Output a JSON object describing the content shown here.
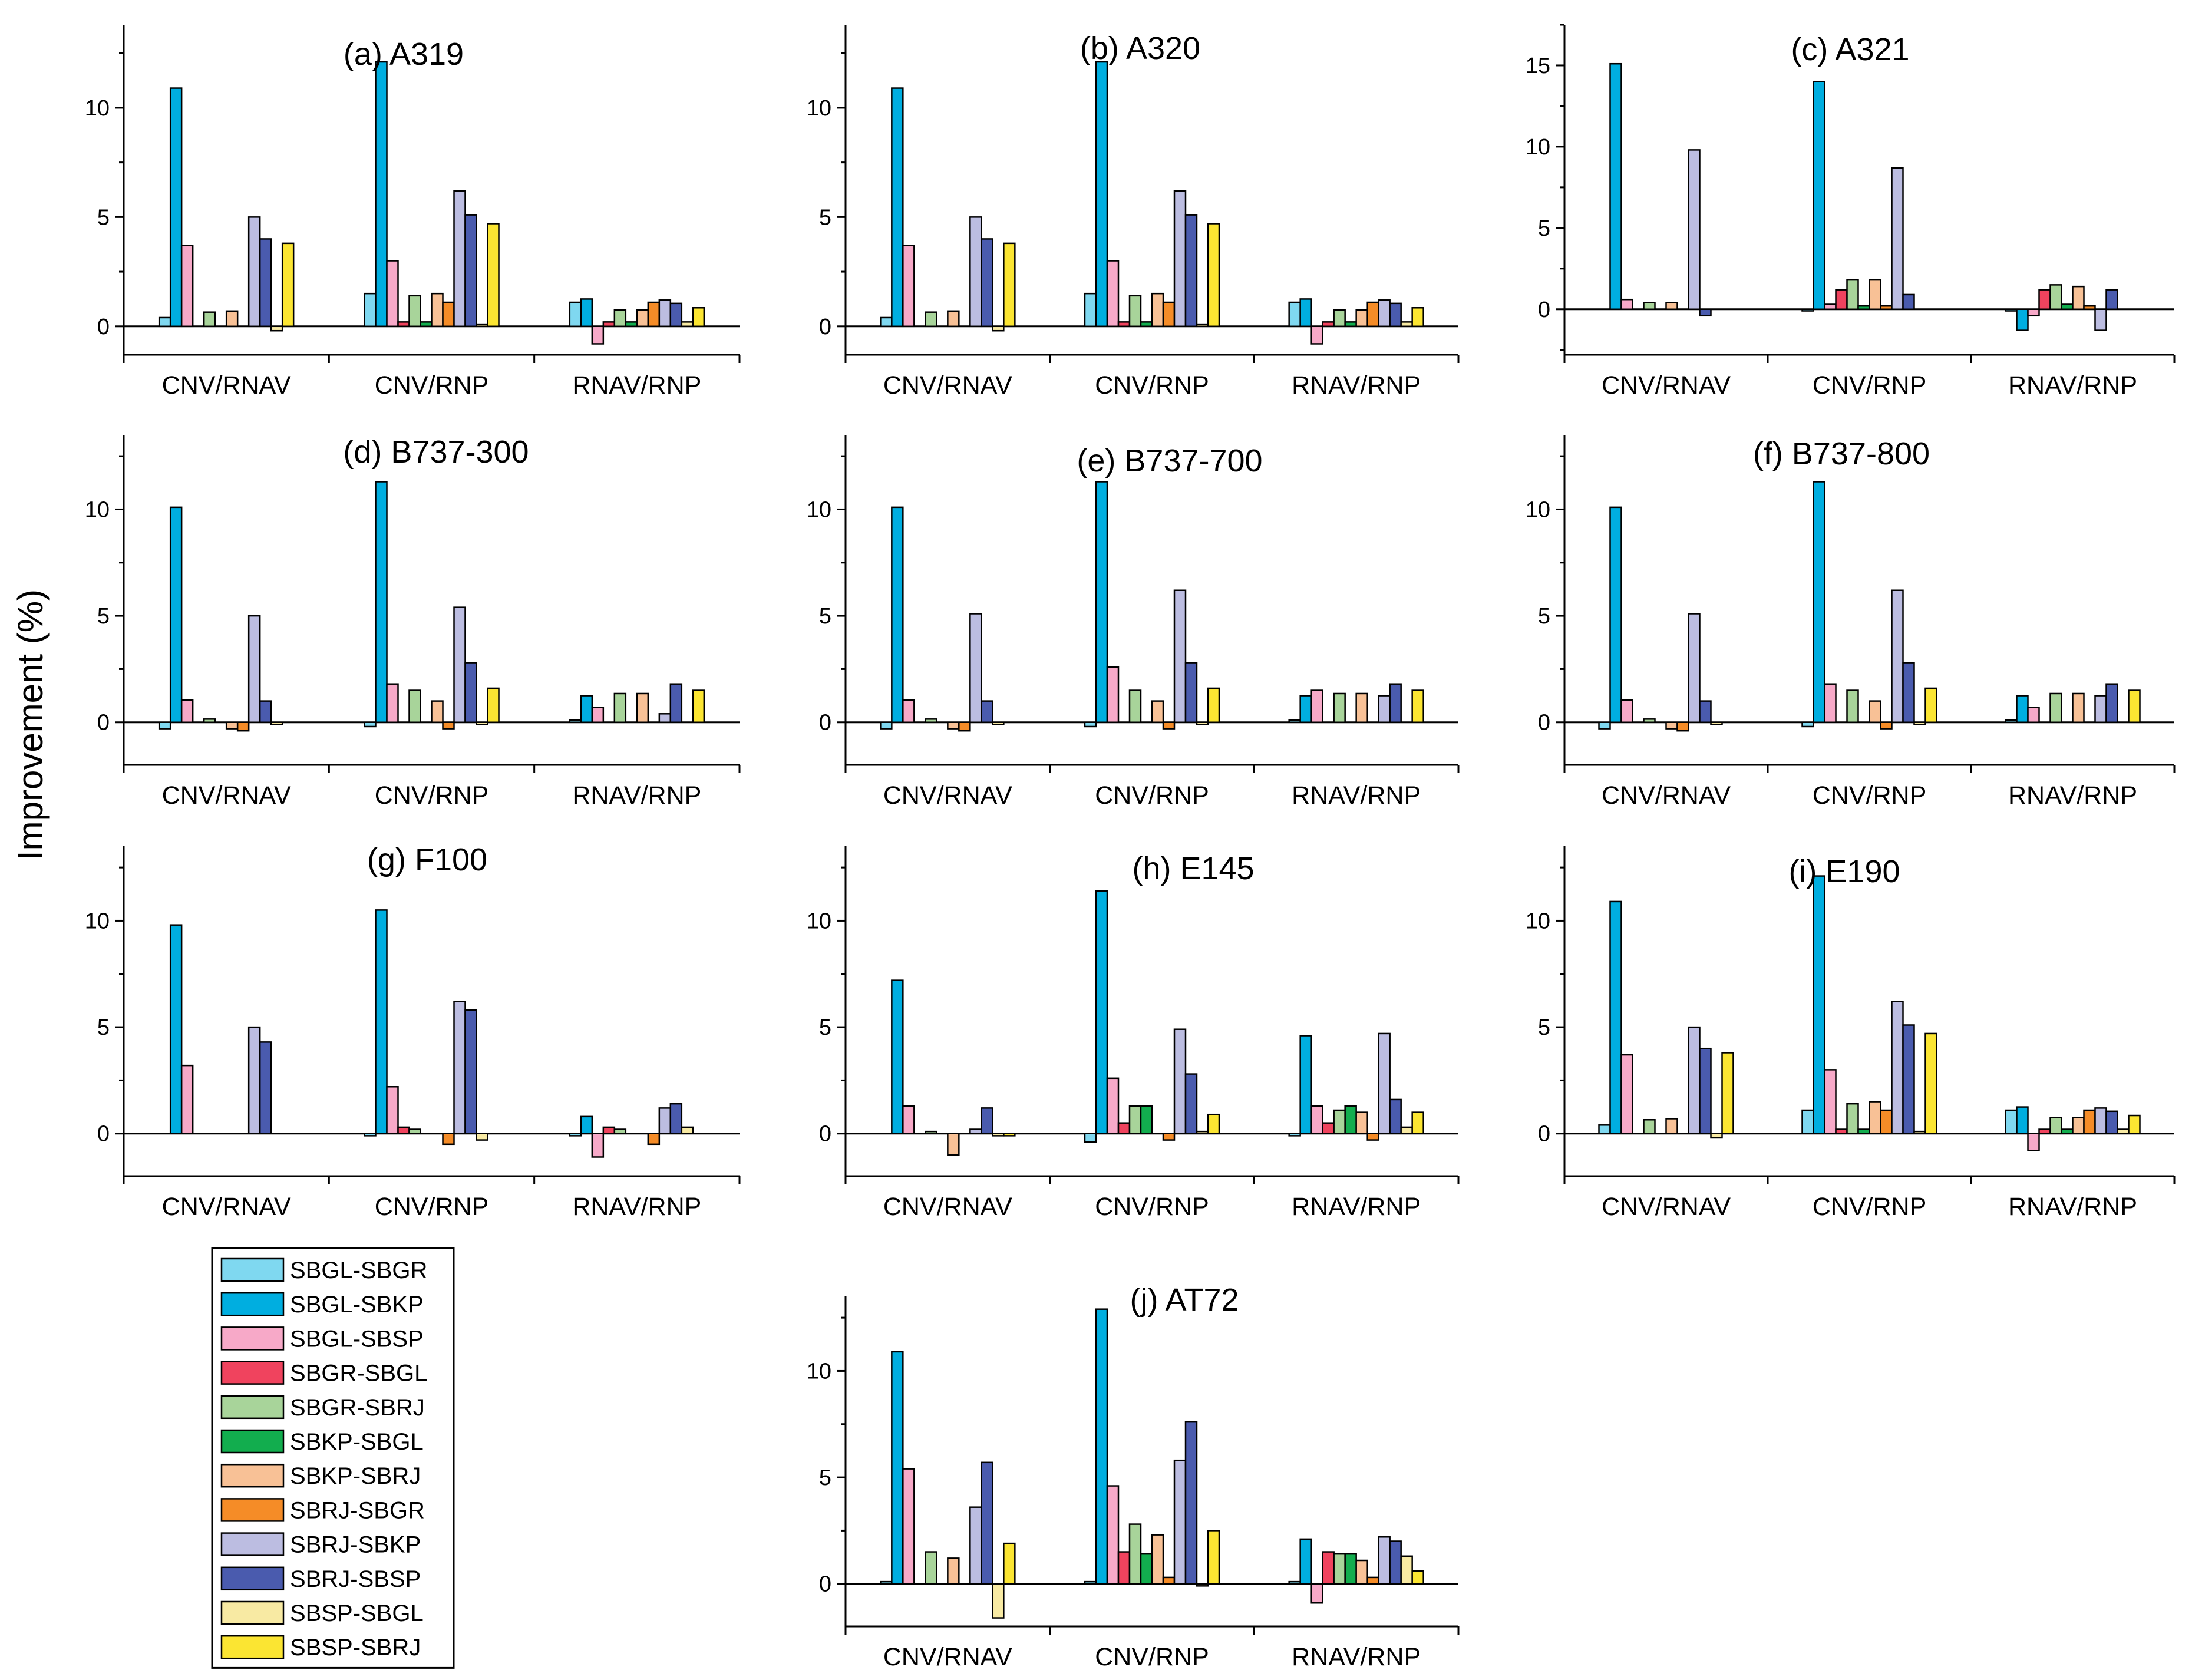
{
  "ylabel": "Improvement (%)",
  "legend": [
    {
      "name": "SBGL-SBGR",
      "color": "#7fd8f0"
    },
    {
      "name": "SBGL-SBKP",
      "color": "#00aee0"
    },
    {
      "name": "SBGL-SBSP",
      "color": "#f7a9c8"
    },
    {
      "name": "SBGR-SBGL",
      "color": "#f0435e"
    },
    {
      "name": "SBGR-SBRJ",
      "color": "#a8d49a"
    },
    {
      "name": "SBKP-SBGL",
      "color": "#12ad4e"
    },
    {
      "name": "SBKP-SBRJ",
      "color": "#f8c196"
    },
    {
      "name": "SBRJ-SBGR",
      "color": "#f58c27"
    },
    {
      "name": "SBRJ-SBKP",
      "color": "#bcbde1"
    },
    {
      "name": "SBRJ-SBSP",
      "color": "#4a5bae"
    },
    {
      "name": "SBSP-SBGL",
      "color": "#f8eaa3"
    },
    {
      "name": "SBSP-SBRJ",
      "color": "#fbe532"
    }
  ],
  "chart_data": [
    {
      "type": "bar",
      "title": "(a) A319",
      "xlabel": "",
      "ylabel": "Improvement (%)",
      "ylim": [
        -1.3,
        13.8
      ],
      "yticks": [
        0,
        5,
        10
      ],
      "categories": [
        "CNV/RNAV",
        "CNV/RNP",
        "RNAV/RNP"
      ],
      "values": [
        [
          0.4,
          10.9,
          3.7,
          0,
          0.65,
          0,
          0.7,
          0,
          5.0,
          4.0,
          -0.2,
          3.8
        ],
        [
          1.5,
          12.1,
          3.0,
          0.2,
          1.4,
          0.2,
          1.5,
          1.1,
          6.2,
          5.1,
          0.1,
          4.7
        ],
        [
          1.1,
          1.25,
          -0.8,
          0.2,
          0.75,
          0.2,
          0.75,
          1.1,
          1.2,
          1.05,
          0.2,
          0.85
        ]
      ]
    },
    {
      "type": "bar",
      "title": "(b) A320",
      "xlabel": "",
      "ylabel": "Improvement (%)",
      "ylim": [
        -1.3,
        13.8
      ],
      "yticks": [
        0,
        5,
        10
      ],
      "categories": [
        "CNV/RNAV",
        "CNV/RNP",
        "RNAV/RNP"
      ],
      "values": [
        [
          0.4,
          10.9,
          3.7,
          0,
          0.65,
          0,
          0.7,
          0,
          5.0,
          4.0,
          -0.2,
          3.8
        ],
        [
          1.5,
          12.1,
          3.0,
          0.2,
          1.4,
          0.2,
          1.5,
          1.1,
          6.2,
          5.1,
          0.1,
          4.7
        ],
        [
          1.1,
          1.25,
          -0.8,
          0.2,
          0.75,
          0.2,
          0.75,
          1.1,
          1.2,
          1.05,
          0.2,
          0.85
        ]
      ]
    },
    {
      "type": "bar",
      "title": "(c) A321",
      "xlabel": "",
      "ylabel": "Improvement (%)",
      "ylim": [
        -2.8,
        17.5
      ],
      "yticks": [
        0,
        5,
        10,
        15
      ],
      "categories": [
        "CNV/RNAV",
        "CNV/RNP",
        "RNAV/RNP"
      ],
      "values": [
        [
          0,
          15.1,
          0.6,
          0,
          0.4,
          0,
          0.4,
          0,
          9.8,
          -0.4,
          0,
          0
        ],
        [
          -0.1,
          14.0,
          0.3,
          1.2,
          1.8,
          0.2,
          1.8,
          0.2,
          8.7,
          0.9,
          0,
          0
        ],
        [
          -0.1,
          -1.3,
          -0.4,
          1.2,
          1.5,
          0.3,
          1.4,
          0.2,
          -1.3,
          1.2,
          0,
          0
        ]
      ]
    },
    {
      "type": "bar",
      "title": "(d) B737-300",
      "xlabel": "",
      "ylabel": "Improvement (%)",
      "ylim": [
        -2.0,
        13.5
      ],
      "yticks": [
        0,
        5,
        10
      ],
      "categories": [
        "CNV/RNAV",
        "CNV/RNP",
        "RNAV/RNP"
      ],
      "values": [
        [
          -0.3,
          10.1,
          1.05,
          0,
          0.15,
          0,
          -0.3,
          -0.4,
          5.0,
          1.0,
          -0.1,
          0
        ],
        [
          -0.2,
          11.3,
          1.8,
          0,
          1.5,
          0,
          1.0,
          -0.3,
          5.4,
          2.8,
          -0.1,
          1.6
        ],
        [
          0.1,
          1.25,
          0.7,
          0,
          1.35,
          0,
          1.35,
          0,
          0.4,
          1.8,
          0,
          1.5
        ]
      ]
    },
    {
      "type": "bar",
      "title": "(e) B737-700",
      "xlabel": "",
      "ylabel": "Improvement (%)",
      "ylim": [
        -2.0,
        13.5
      ],
      "yticks": [
        0,
        5,
        10
      ],
      "categories": [
        "CNV/RNAV",
        "CNV/RNP",
        "RNAV/RNP"
      ],
      "values": [
        [
          -0.3,
          10.1,
          1.05,
          0,
          0.15,
          0,
          -0.3,
          -0.4,
          5.1,
          1.0,
          -0.1,
          0
        ],
        [
          -0.2,
          11.3,
          2.6,
          0,
          1.5,
          0,
          1.0,
          -0.3,
          6.2,
          2.8,
          -0.1,
          1.6
        ],
        [
          0.1,
          1.25,
          1.5,
          0,
          1.35,
          0,
          1.35,
          0,
          1.25,
          1.8,
          0,
          1.5
        ]
      ]
    },
    {
      "type": "bar",
      "title": "(f) B737-800",
      "xlabel": "",
      "ylabel": "Improvement (%)",
      "ylim": [
        -2.0,
        13.5
      ],
      "yticks": [
        0,
        5,
        10
      ],
      "categories": [
        "CNV/RNAV",
        "CNV/RNP",
        "RNAV/RNP"
      ],
      "values": [
        [
          -0.3,
          10.1,
          1.05,
          0,
          0.15,
          0,
          -0.3,
          -0.4,
          5.1,
          1.0,
          -0.1,
          0
        ],
        [
          -0.2,
          11.3,
          1.8,
          0,
          1.5,
          0,
          1.0,
          -0.3,
          6.2,
          2.8,
          -0.1,
          1.6
        ],
        [
          0.1,
          1.25,
          0.7,
          0,
          1.35,
          0,
          1.35,
          0,
          1.25,
          1.8,
          0,
          1.5
        ]
      ]
    },
    {
      "type": "bar",
      "title": "(g) F100",
      "xlabel": "",
      "ylabel": "Improvement (%)",
      "ylim": [
        -2.0,
        13.5
      ],
      "yticks": [
        0,
        5,
        10
      ],
      "categories": [
        "CNV/RNAV",
        "CNV/RNP",
        "RNAV/RNP"
      ],
      "values": [
        [
          0,
          9.8,
          3.2,
          0,
          0,
          0,
          0,
          0,
          5.0,
          4.3,
          0,
          0
        ],
        [
          -0.1,
          10.5,
          2.2,
          0.3,
          0.2,
          0,
          0,
          -0.5,
          6.2,
          5.8,
          -0.3,
          0
        ],
        [
          -0.1,
          0.8,
          -1.1,
          0.3,
          0.2,
          0,
          0,
          -0.5,
          1.2,
          1.4,
          0.3,
          0
        ]
      ]
    },
    {
      "type": "bar",
      "title": "(h) E145",
      "xlabel": "",
      "ylabel": "Improvement (%)",
      "ylim": [
        -2.0,
        13.5
      ],
      "yticks": [
        0,
        5,
        10
      ],
      "categories": [
        "CNV/RNAV",
        "CNV/RNP",
        "RNAV/RNP"
      ],
      "values": [
        [
          0,
          7.2,
          1.3,
          0,
          0.1,
          0,
          -1.0,
          0,
          0.2,
          1.2,
          -0.1,
          -0.1
        ],
        [
          -0.4,
          11.4,
          2.6,
          0.5,
          1.3,
          1.3,
          0,
          -0.3,
          4.9,
          2.8,
          0.1,
          0.9
        ],
        [
          -0.1,
          4.6,
          1.3,
          0.5,
          1.1,
          1.3,
          1.0,
          -0.3,
          4.7,
          1.6,
          0.3,
          1.0
        ]
      ]
    },
    {
      "type": "bar",
      "title": "(i) E190",
      "xlabel": "",
      "ylabel": "Improvement (%)",
      "ylim": [
        -2.0,
        13.5
      ],
      "yticks": [
        0,
        5,
        10
      ],
      "categories": [
        "CNV/RNAV",
        "CNV/RNP",
        "RNAV/RNP"
      ],
      "values": [
        [
          0.4,
          10.9,
          3.7,
          0,
          0.65,
          0,
          0.7,
          0,
          5.0,
          4.0,
          -0.2,
          3.8
        ],
        [
          1.1,
          12.1,
          3.0,
          0.2,
          1.4,
          0.2,
          1.5,
          1.1,
          6.2,
          5.1,
          0.1,
          4.7
        ],
        [
          1.1,
          1.25,
          -0.8,
          0.2,
          0.75,
          0.2,
          0.75,
          1.1,
          1.2,
          1.05,
          0.2,
          0.85
        ]
      ]
    },
    {
      "type": "bar",
      "title": "(j) AT72",
      "xlabel": "",
      "ylabel": "Improvement (%)",
      "ylim": [
        -2.0,
        13.5
      ],
      "yticks": [
        0,
        5,
        10
      ],
      "categories": [
        "CNV/RNAV",
        "CNV/RNP",
        "RNAV/RNP"
      ],
      "values": [
        [
          0.1,
          10.9,
          5.4,
          0,
          1.5,
          0,
          1.2,
          0,
          3.6,
          5.7,
          -1.6,
          1.9
        ],
        [
          0.1,
          12.9,
          4.6,
          1.5,
          2.8,
          1.4,
          2.3,
          0.3,
          5.8,
          7.6,
          -0.1,
          2.5
        ],
        [
          0.1,
          2.1,
          -0.9,
          1.5,
          1.4,
          1.4,
          1.1,
          0.3,
          2.2,
          2.0,
          1.3,
          0.6
        ]
      ]
    }
  ]
}
